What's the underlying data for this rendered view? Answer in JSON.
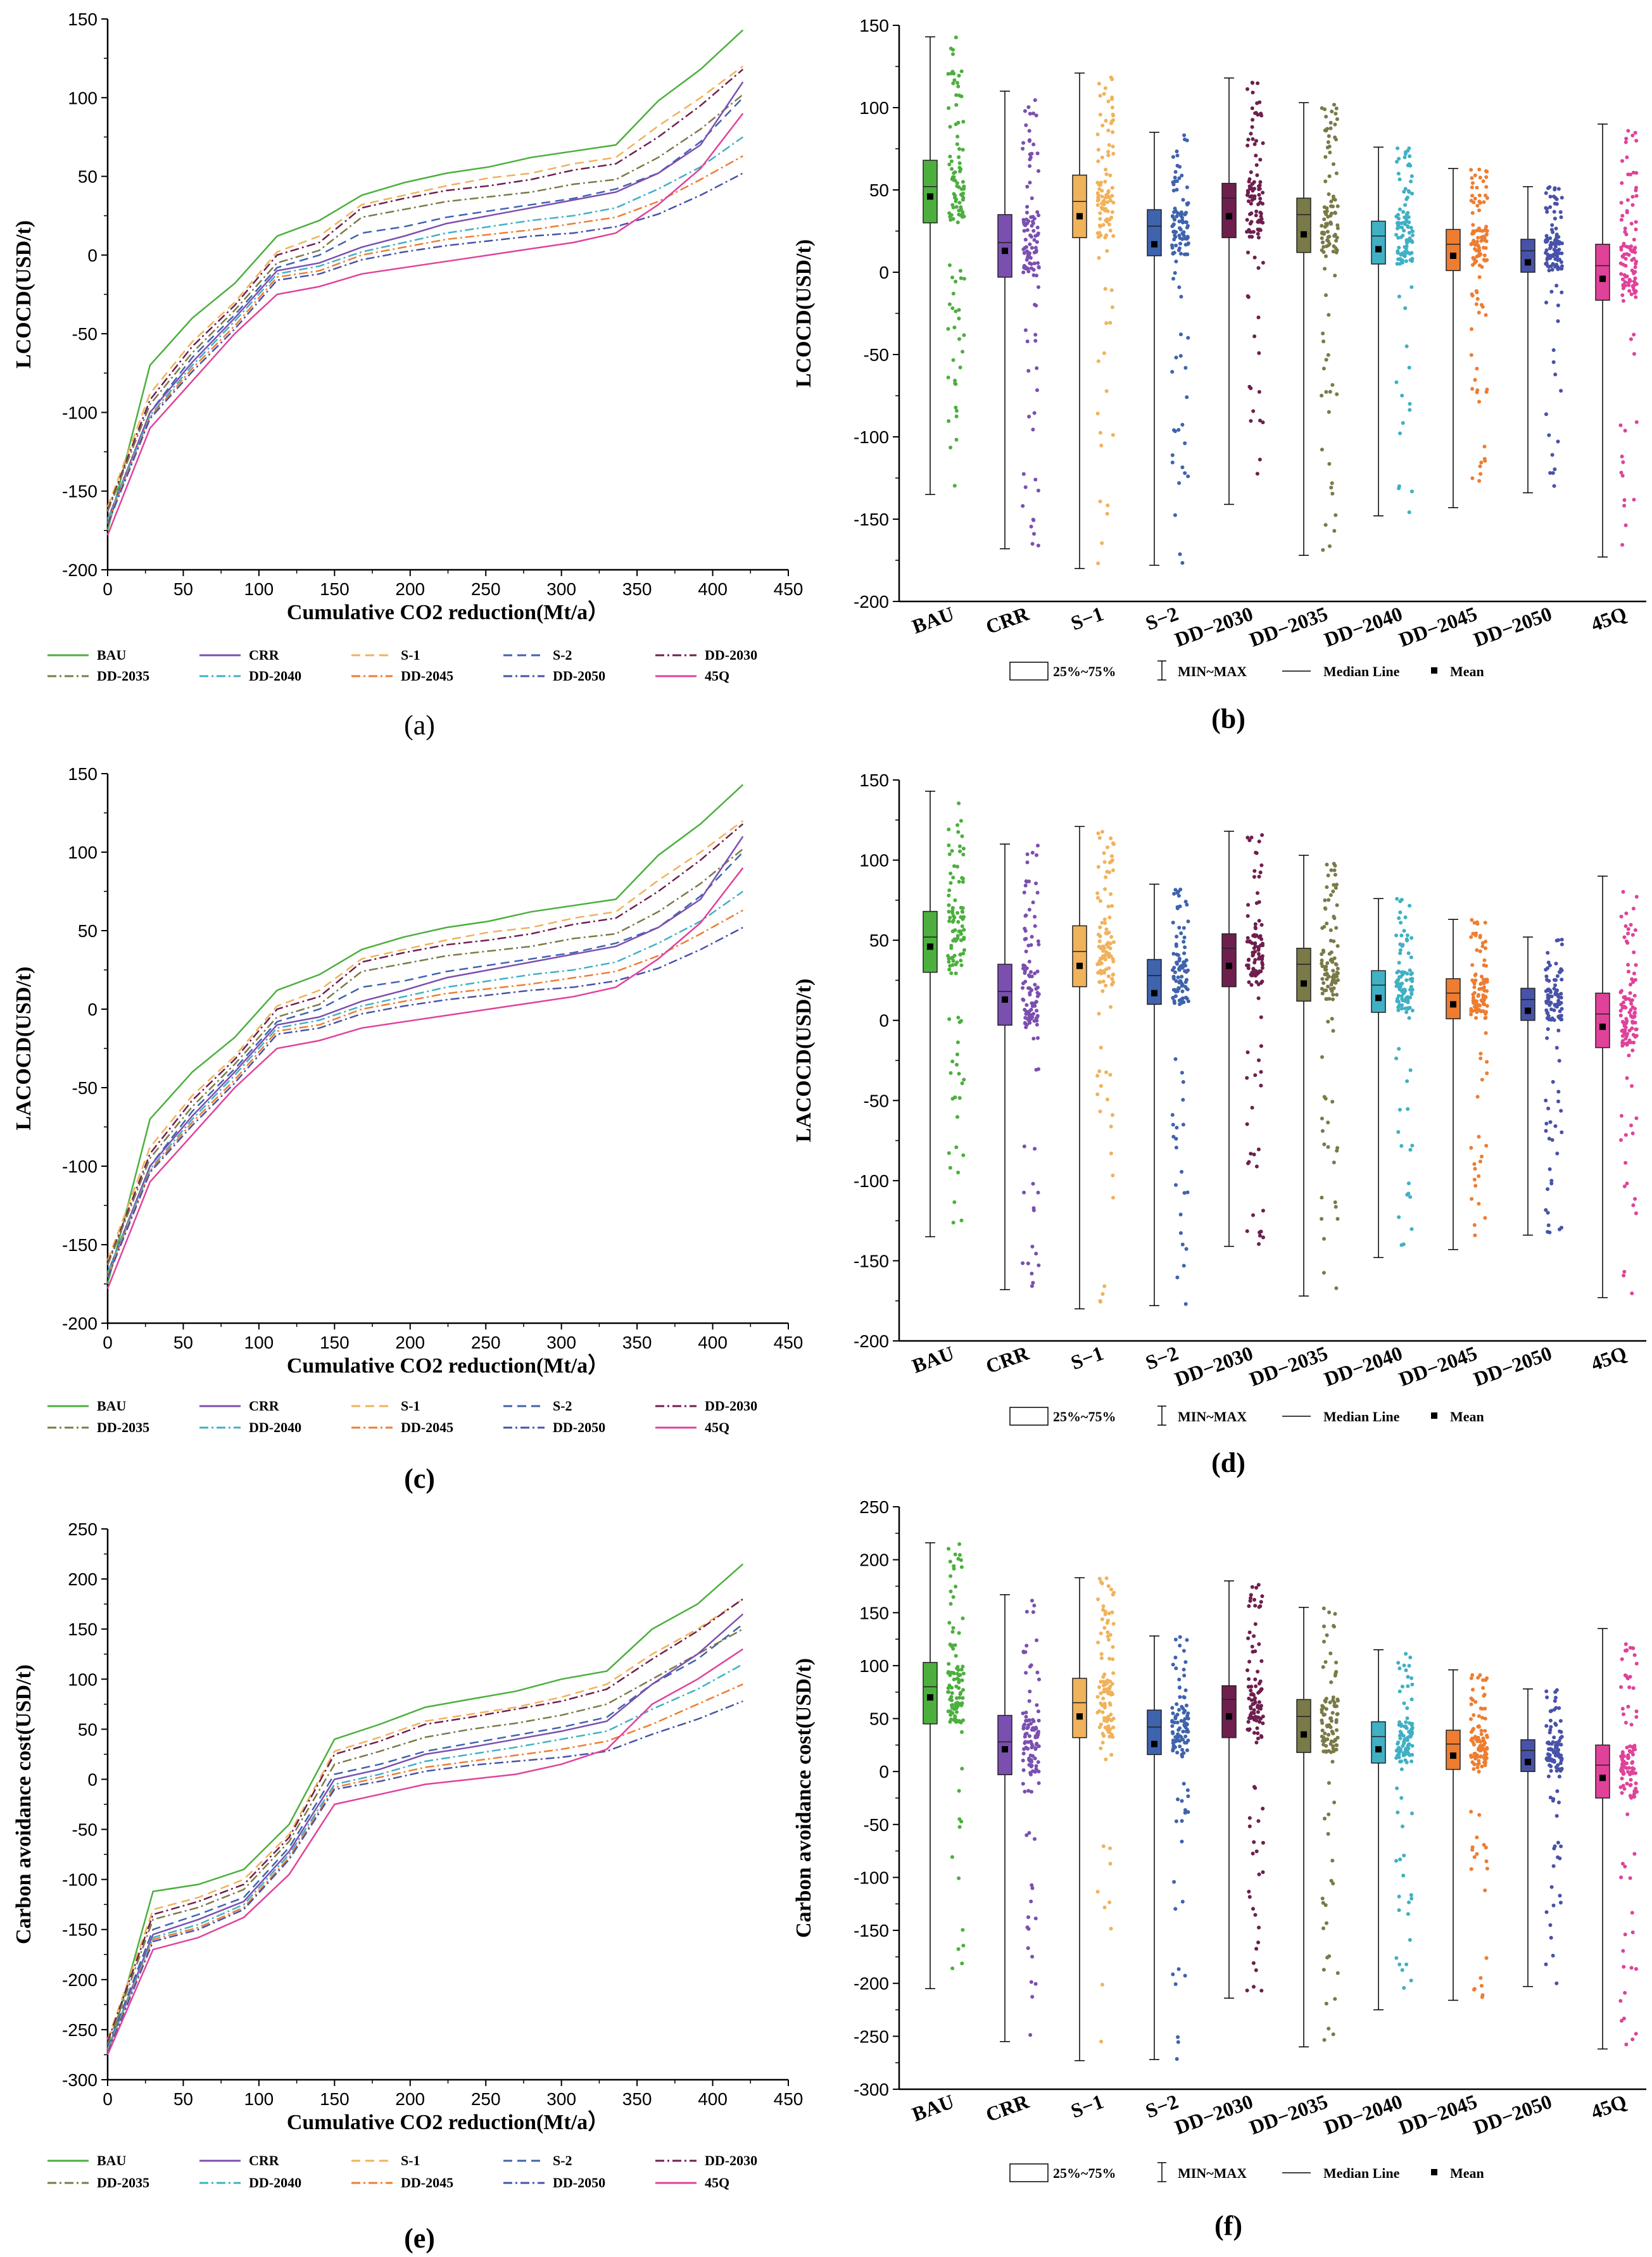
{
  "scenario_colors": {
    "BAU": "#4caf3e",
    "CRR": "#7b4fb0",
    "S-1": "#f0b25a",
    "S-2": "#3f63ad",
    "DD-2030": "#6e1f4e",
    "DD-2035": "#7a7a48",
    "DD-2040": "#40b0c4",
    "DD-2045": "#ee7d31",
    "DD-2050": "#4752a8",
    "45Q": "#e0429a"
  },
  "line_legend": [
    "BAU",
    "CRR",
    "S-1",
    "S-2",
    "DD-2030",
    "DD-2035",
    "DD-2040",
    "DD-2045",
    "DD-2050",
    "45Q"
  ],
  "box_legend": {
    "box": "25%~75%",
    "whisker": "MIN~MAX",
    "median": "Median Line",
    "mean": "Mean"
  },
  "chart_data": [
    {
      "id": "a",
      "type": "line",
      "panel_label": "(a)",
      "xlabel": "Cumulative CO2 reduction(Mt/a）",
      "ylabel": "LCOCD(USD/t)",
      "xlim": [
        0,
        450
      ],
      "ylim": [
        -200,
        150
      ],
      "xticks": [
        0,
        50,
        100,
        150,
        200,
        250,
        300,
        350,
        400,
        450
      ],
      "yticks": [
        -200,
        -150,
        -100,
        -50,
        0,
        50,
        100,
        150
      ],
      "series": [
        {
          "name": "BAU",
          "y": [
            -175,
            -70,
            -40,
            -18,
            12,
            22,
            38,
            46,
            52,
            56,
            62,
            66,
            70,
            98,
            118,
            143
          ]
        },
        {
          "name": "S-1",
          "y": [
            -160,
            -88,
            -55,
            -30,
            2,
            12,
            32,
            38,
            44,
            49,
            52,
            58,
            62,
            82,
            100,
            120
          ]
        },
        {
          "name": "DD-2030",
          "y": [
            -162,
            -92,
            -58,
            -32,
            0,
            8,
            30,
            36,
            41,
            44,
            48,
            54,
            58,
            75,
            95,
            118
          ]
        },
        {
          "name": "DD-2035",
          "y": [
            -163,
            -95,
            -62,
            -35,
            -5,
            3,
            24,
            29,
            34,
            37,
            40,
            45,
            48,
            62,
            80,
            102
          ]
        },
        {
          "name": "S-2",
          "y": [
            -170,
            -100,
            -65,
            -38,
            -8,
            0,
            14,
            18,
            24,
            28,
            32,
            36,
            42,
            52,
            72,
            100
          ]
        },
        {
          "name": "CRR",
          "y": [
            -168,
            -100,
            -68,
            -40,
            -10,
            -5,
            5,
            12,
            20,
            25,
            30,
            35,
            40,
            52,
            70,
            110
          ]
        },
        {
          "name": "DD-2040",
          "y": [
            -168,
            -102,
            -70,
            -42,
            -12,
            -7,
            2,
            8,
            14,
            18,
            22,
            25,
            30,
            42,
            56,
            75
          ]
        },
        {
          "name": "DD-2045",
          "y": [
            -170,
            -103,
            -72,
            -45,
            -14,
            -10,
            0,
            5,
            10,
            13,
            16,
            20,
            24,
            34,
            48,
            63
          ]
        },
        {
          "name": "DD-2050",
          "y": [
            -171,
            -104,
            -74,
            -47,
            -16,
            -12,
            -3,
            2,
            6,
            9,
            12,
            14,
            18,
            26,
            38,
            52
          ]
        },
        {
          "name": "45Q",
          "y": [
            -178,
            -110,
            -80,
            -50,
            -25,
            -20,
            -12,
            -8,
            -4,
            0,
            4,
            8,
            14,
            32,
            55,
            90
          ]
        }
      ]
    },
    {
      "id": "b",
      "type": "box",
      "panel_label": "(b)",
      "ylabel": "LCOCD(USD/t)",
      "ylim": [
        -200,
        150
      ],
      "yticks": [
        -200,
        -150,
        -100,
        -50,
        0,
        50,
        100,
        150
      ],
      "categories": [
        "BAU",
        "CRR",
        "S−1",
        "S−2",
        "DD−2030",
        "DD−2035",
        "DD−2040",
        "DD−2045",
        "DD−2050",
        "45Q"
      ],
      "boxes": [
        {
          "min": -135,
          "q1": 30,
          "median": 52,
          "q3": 68,
          "max": 143,
          "mean": 46
        },
        {
          "min": -168,
          "q1": -3,
          "median": 18,
          "q3": 35,
          "max": 110,
          "mean": 13
        },
        {
          "min": -180,
          "q1": 21,
          "median": 43,
          "q3": 59,
          "max": 121,
          "mean": 34
        },
        {
          "min": -178,
          "q1": 10,
          "median": 28,
          "q3": 38,
          "max": 85,
          "mean": 17
        },
        {
          "min": -141,
          "q1": 21,
          "median": 45,
          "q3": 54,
          "max": 118,
          "mean": 34
        },
        {
          "min": -172,
          "q1": 12,
          "median": 35,
          "q3": 45,
          "max": 103,
          "mean": 23
        },
        {
          "min": -148,
          "q1": 5,
          "median": 22,
          "q3": 31,
          "max": 76,
          "mean": 14
        },
        {
          "min": -143,
          "q1": 1,
          "median": 17,
          "q3": 26,
          "max": 63,
          "mean": 10
        },
        {
          "min": -134,
          "q1": 0,
          "median": 13,
          "q3": 20,
          "max": 52,
          "mean": 6
        },
        {
          "min": -173,
          "q1": -17,
          "median": 4,
          "q3": 17,
          "max": 90,
          "mean": -4
        }
      ]
    },
    {
      "id": "c",
      "type": "line",
      "panel_label": "(c)",
      "xlabel": "Cumulative CO2 reduction(Mt/a）",
      "ylabel": "LACOCD(USD/t)",
      "xlim": [
        0,
        450
      ],
      "ylim": [
        -200,
        150
      ],
      "xticks": [
        0,
        50,
        100,
        150,
        200,
        250,
        300,
        350,
        400,
        450
      ],
      "yticks": [
        -200,
        -150,
        -100,
        -50,
        0,
        50,
        100,
        150
      ],
      "series": [
        {
          "name": "BAU",
          "y": [
            -175,
            -70,
            -40,
            -18,
            12,
            22,
            38,
            46,
            52,
            56,
            62,
            66,
            70,
            98,
            118,
            143
          ]
        },
        {
          "name": "S-1",
          "y": [
            -160,
            -88,
            -55,
            -30,
            2,
            12,
            32,
            38,
            44,
            49,
            52,
            58,
            62,
            82,
            100,
            120
          ]
        },
        {
          "name": "DD-2030",
          "y": [
            -162,
            -92,
            -58,
            -32,
            0,
            8,
            30,
            36,
            41,
            44,
            48,
            54,
            58,
            75,
            95,
            118
          ]
        },
        {
          "name": "DD-2035",
          "y": [
            -163,
            -95,
            -62,
            -35,
            -5,
            3,
            24,
            29,
            34,
            37,
            40,
            45,
            48,
            62,
            80,
            102
          ]
        },
        {
          "name": "S-2",
          "y": [
            -170,
            -100,
            -65,
            -38,
            -8,
            0,
            14,
            18,
            24,
            28,
            32,
            36,
            42,
            52,
            72,
            100
          ]
        },
        {
          "name": "CRR",
          "y": [
            -168,
            -100,
            -68,
            -40,
            -10,
            -5,
            5,
            12,
            20,
            25,
            30,
            35,
            40,
            52,
            70,
            110
          ]
        },
        {
          "name": "DD-2040",
          "y": [
            -168,
            -102,
            -70,
            -42,
            -12,
            -7,
            2,
            8,
            14,
            18,
            22,
            25,
            30,
            42,
            56,
            75
          ]
        },
        {
          "name": "DD-2045",
          "y": [
            -170,
            -103,
            -72,
            -45,
            -14,
            -10,
            0,
            5,
            10,
            13,
            16,
            20,
            24,
            34,
            48,
            63
          ]
        },
        {
          "name": "DD-2050",
          "y": [
            -171,
            -104,
            -74,
            -47,
            -16,
            -12,
            -3,
            2,
            6,
            9,
            12,
            14,
            18,
            26,
            38,
            52
          ]
        },
        {
          "name": "45Q",
          "y": [
            -178,
            -110,
            -80,
            -50,
            -25,
            -20,
            -12,
            -8,
            -4,
            0,
            4,
            8,
            14,
            32,
            55,
            90
          ]
        }
      ]
    },
    {
      "id": "d",
      "type": "box",
      "panel_label": "(d)",
      "ylabel": "LACOCD(USD/t)",
      "ylim": [
        -200,
        150
      ],
      "yticks": [
        -200,
        -150,
        -100,
        -50,
        0,
        50,
        100,
        150
      ],
      "categories": [
        "BAU",
        "CRR",
        "S−1",
        "S−2",
        "DD−2030",
        "DD−2035",
        "DD−2040",
        "DD−2045",
        "DD−2050",
        "45Q"
      ],
      "boxes": [
        {
          "min": -135,
          "q1": 30,
          "median": 52,
          "q3": 68,
          "max": 143,
          "mean": 46
        },
        {
          "min": -168,
          "q1": -3,
          "median": 18,
          "q3": 35,
          "max": 110,
          "mean": 13
        },
        {
          "min": -180,
          "q1": 21,
          "median": 43,
          "q3": 59,
          "max": 121,
          "mean": 34
        },
        {
          "min": -178,
          "q1": 10,
          "median": 28,
          "q3": 38,
          "max": 85,
          "mean": 17
        },
        {
          "min": -141,
          "q1": 21,
          "median": 45,
          "q3": 54,
          "max": 118,
          "mean": 34
        },
        {
          "min": -172,
          "q1": 12,
          "median": 35,
          "q3": 45,
          "max": 103,
          "mean": 23
        },
        {
          "min": -148,
          "q1": 5,
          "median": 22,
          "q3": 31,
          "max": 76,
          "mean": 14
        },
        {
          "min": -143,
          "q1": 1,
          "median": 17,
          "q3": 26,
          "max": 63,
          "mean": 10
        },
        {
          "min": -134,
          "q1": 0,
          "median": 13,
          "q3": 20,
          "max": 52,
          "mean": 6
        },
        {
          "min": -173,
          "q1": -17,
          "median": 4,
          "q3": 17,
          "max": 90,
          "mean": -4
        }
      ]
    },
    {
      "id": "e",
      "type": "line",
      "panel_label": "(e)",
      "xlabel": "Cumulative CO2 reduction(Mt/a）",
      "ylabel": "Carbon avoidance cost(USD/t)",
      "xlim": [
        0,
        450
      ],
      "ylim": [
        -300,
        250
      ],
      "xticks": [
        0,
        50,
        100,
        150,
        200,
        250,
        300,
        350,
        400,
        450
      ],
      "yticks": [
        -300,
        -250,
        -200,
        -150,
        -100,
        -50,
        0,
        50,
        100,
        150,
        200,
        250
      ],
      "series": [
        {
          "name": "BAU",
          "y": [
            -275,
            -112,
            -105,
            -90,
            -45,
            40,
            55,
            72,
            80,
            88,
            100,
            108,
            150,
            175,
            215
          ]
        },
        {
          "name": "S-1",
          "y": [
            -260,
            -130,
            -118,
            -100,
            -55,
            28,
            42,
            58,
            65,
            72,
            82,
            95,
            125,
            150,
            180
          ]
        },
        {
          "name": "DD-2030",
          "y": [
            -262,
            -135,
            -122,
            -105,
            -58,
            25,
            38,
            55,
            62,
            70,
            78,
            90,
            120,
            148,
            180
          ]
        },
        {
          "name": "DD-2035",
          "y": [
            -265,
            -140,
            -128,
            -110,
            -62,
            15,
            28,
            42,
            50,
            56,
            64,
            75,
            100,
            125,
            150
          ]
        },
        {
          "name": "S-2",
          "y": [
            -268,
            -150,
            -135,
            -118,
            -68,
            5,
            15,
            28,
            36,
            44,
            52,
            62,
            95,
            120,
            155
          ]
        },
        {
          "name": "CRR",
          "y": [
            -270,
            -155,
            -140,
            -122,
            -72,
            0,
            10,
            25,
            32,
            40,
            48,
            58,
            95,
            125,
            165
          ]
        },
        {
          "name": "DD-2040",
          "y": [
            -270,
            -158,
            -145,
            -125,
            -75,
            -5,
            5,
            18,
            25,
            32,
            40,
            48,
            70,
            90,
            115
          ]
        },
        {
          "name": "DD-2045",
          "y": [
            -272,
            -160,
            -148,
            -128,
            -78,
            -8,
            2,
            12,
            18,
            24,
            30,
            38,
            55,
            75,
            95
          ]
        },
        {
          "name": "DD-2050",
          "y": [
            -273,
            -162,
            -150,
            -130,
            -80,
            -10,
            -2,
            8,
            14,
            18,
            22,
            28,
            45,
            60,
            78
          ]
        },
        {
          "name": "45Q",
          "y": [
            -275,
            -170,
            -158,
            -138,
            -95,
            -25,
            -15,
            -5,
            0,
            5,
            15,
            30,
            75,
            100,
            130
          ]
        }
      ]
    },
    {
      "id": "f",
      "type": "box",
      "panel_label": "(f)",
      "ylabel": "Carbon avoidance cost(USD/t)",
      "ylim": [
        -300,
        250
      ],
      "yticks": [
        -300,
        -250,
        -200,
        -150,
        -100,
        -50,
        0,
        50,
        100,
        150,
        200,
        250
      ],
      "categories": [
        "BAU",
        "CRR",
        "S−1",
        "S−2",
        "DD−2030",
        "DD−2035",
        "DD−2040",
        "DD−2045",
        "DD−2050",
        "45Q"
      ],
      "boxes": [
        {
          "min": -205,
          "q1": 45,
          "median": 80,
          "q3": 103,
          "max": 216,
          "mean": 70
        },
        {
          "min": -255,
          "q1": -3,
          "median": 28,
          "q3": 53,
          "max": 167,
          "mean": 21
        },
        {
          "min": -273,
          "q1": 32,
          "median": 65,
          "q3": 88,
          "max": 183,
          "mean": 52
        },
        {
          "min": -272,
          "q1": 16,
          "median": 42,
          "q3": 58,
          "max": 128,
          "mean": 26
        },
        {
          "min": -214,
          "q1": 32,
          "median": 68,
          "q3": 81,
          "max": 180,
          "mean": 52
        },
        {
          "min": -260,
          "q1": 18,
          "median": 52,
          "q3": 68,
          "max": 155,
          "mean": 35
        },
        {
          "min": -225,
          "q1": 8,
          "median": 33,
          "q3": 47,
          "max": 115,
          "mean": 21
        },
        {
          "min": -216,
          "q1": 2,
          "median": 26,
          "q3": 39,
          "max": 96,
          "mean": 15
        },
        {
          "min": -203,
          "q1": 0,
          "median": 20,
          "q3": 30,
          "max": 78,
          "mean": 9
        },
        {
          "min": -262,
          "q1": -25,
          "median": 6,
          "q3": 25,
          "max": 135,
          "mean": -6
        }
      ]
    }
  ]
}
